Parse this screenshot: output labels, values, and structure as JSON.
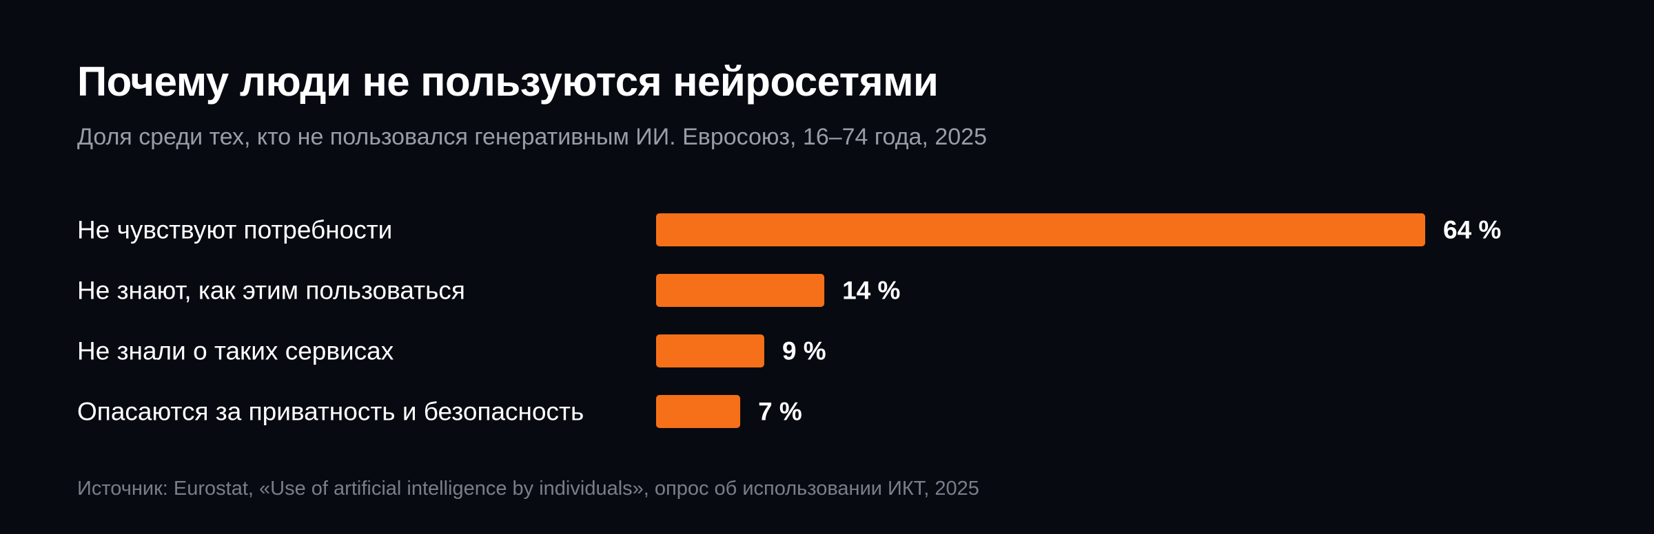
{
  "chart_data": {
    "type": "bar",
    "orientation": "horizontal",
    "title": "Почему люди не пользуются нейросетями",
    "subtitle": "Доля среди тех, кто не пользовался генеративным ИИ. Евросоюз, 16–74 года, 2025",
    "categories": [
      "Не чувствуют потребности",
      "Не знают, как этим пользоваться",
      "Не знали о таких сервисах",
      "Опасаются за приватность и безопасность"
    ],
    "values": [
      64,
      14,
      9,
      7
    ],
    "value_labels": [
      "64 %",
      "14 %",
      "9 %",
      "7 %"
    ],
    "unit": "%",
    "xlim": [
      0,
      64
    ],
    "grid": false,
    "legend": "none",
    "bar_color": "#f57018",
    "source": "Источник: Eurostat, «Use of artificial intelligence by individuals», опрос об использовании ИКТ, 2025"
  }
}
